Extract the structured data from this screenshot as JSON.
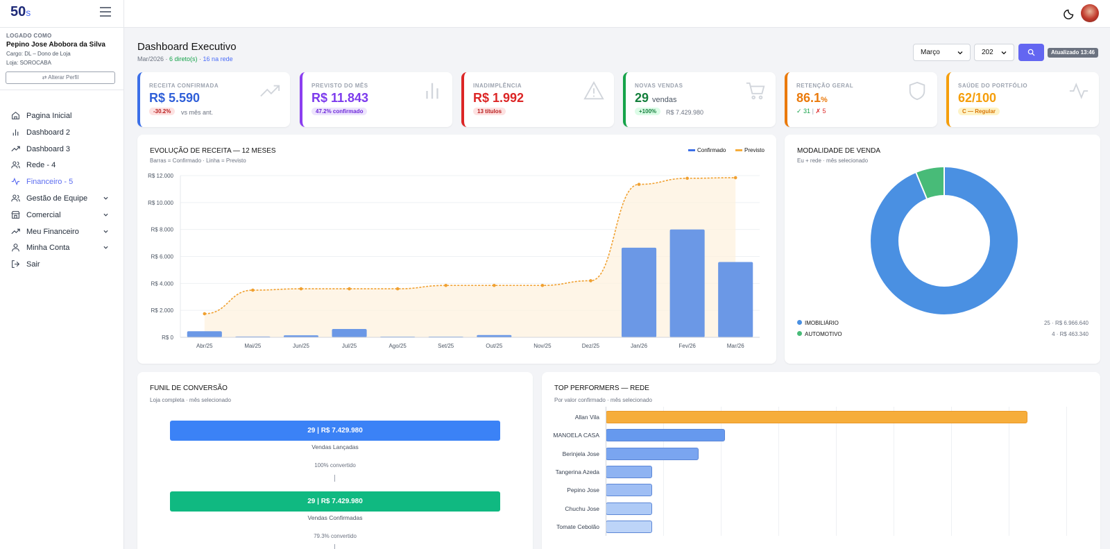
{
  "header": {
    "logo": "50",
    "logo_suffix": "s"
  },
  "profile": {
    "logged_label": "LOGADO COMO",
    "name": "Pepino Jose Abobora da Silva",
    "role": "Cargo: DL – Dono de Loja",
    "store": "Loja: SOROCABA",
    "alter_label": "⇄ Alterar Perfil"
  },
  "sidebar": {
    "items": [
      {
        "label": "Pagina Inicial",
        "icon": "home-icon"
      },
      {
        "label": "Dashboard 2",
        "icon": "bar-chart-icon"
      },
      {
        "label": "Dashboard 3",
        "icon": "trending-up-icon"
      },
      {
        "label": "Rede - 4",
        "icon": "users-icon"
      },
      {
        "label": "Financeiro - 5",
        "icon": "activity-icon"
      },
      {
        "label": "Gestão de Equipe",
        "icon": "users-icon"
      },
      {
        "label": "Comercial",
        "icon": "store-icon"
      },
      {
        "label": "Meu Financeiro",
        "icon": "trending-up-icon"
      },
      {
        "label": "Minha Conta",
        "icon": "user-icon"
      },
      {
        "label": "Sair",
        "icon": "logout-icon"
      }
    ]
  },
  "page": {
    "title": "Dashboard Executivo",
    "period": "Mar/2026",
    "sep1": " · ",
    "direct": "6 direto(s)",
    "sep2": " · ",
    "network": "16 na rede"
  },
  "filters": {
    "month": "Março",
    "year": "202",
    "updated": "Atualizado 13:46"
  },
  "kpis": [
    {
      "title": "RECEITA CONFIRMADA",
      "value": "R$ 5.590",
      "badge": "-30.2%",
      "note": "vs mês ant.",
      "color": "#3b6fe8"
    },
    {
      "title": "PREVISTO DO MÊS",
      "value": "R$ 11.843",
      "badge": "47.2% confirmado",
      "color": "#8b3ef0"
    },
    {
      "title": "INADIMPLÊNCIA",
      "value": "R$ 1.992",
      "badge": "13 títulos",
      "color": "#dc2626"
    },
    {
      "title": "NOVAS VENDAS",
      "value": "29",
      "value_suffix": "vendas",
      "badge": "+100%",
      "note": "R$ 7.429.980",
      "color": "#16a34a"
    },
    {
      "title": "RETENÇÃO GERAL",
      "value": "86.1",
      "value_suffix": "%",
      "ok": "✓ 31",
      "sep": "|",
      "bad": "✗ 5",
      "color": "#ea7a0c"
    },
    {
      "title": "SAÚDE DO PORTFÓLIO",
      "value": "62/100",
      "badge": "C — Regular",
      "color": "#f59e0b"
    }
  ],
  "revenue_chart": {
    "title": "EVOLUÇÃO DE RECEITA — 12 MESES",
    "subtitle": "Barras = Confirmado · Linha = Previsto"
  },
  "modality": {
    "title": "MODALIDADE DE VENDA",
    "subtitle": "Eu + rede · mês selecionado"
  },
  "funnel": {
    "title": "FUNIL DE CONVERSÃO",
    "subtitle": "Loja completa · mês selecionado",
    "stages": [
      {
        "value": "29 | R$ 7.429.980",
        "label": "Vendas Lançadas",
        "conv": "100% convertido"
      },
      {
        "value": "29 | R$ 7.429.980",
        "label": "Vendas Confirmadas",
        "conv": "79.3% convertido"
      }
    ]
  },
  "performers": {
    "title": "TOP PERFORMERS — REDE",
    "subtitle": "Por valor confirmado · mês selecionado"
  },
  "chart_data": [
    {
      "type": "bar",
      "title": "EVOLUÇÃO DE RECEITA — 12 MESES",
      "categories": [
        "Abr/25",
        "Mai/25",
        "Jun/25",
        "Jul/25",
        "Ago/25",
        "Set/25",
        "Out/25",
        "Nov/25",
        "Dez/25",
        "Jan/26",
        "Fev/26",
        "Mar/26"
      ],
      "series": [
        {
          "name": "Confirmado",
          "type": "bar",
          "values": [
            450,
            60,
            150,
            620,
            50,
            50,
            170,
            0,
            0,
            6650,
            8000,
            5590
          ]
        },
        {
          "name": "Previsto",
          "type": "line",
          "values": [
            1750,
            3500,
            3600,
            3600,
            3600,
            3850,
            3850,
            3850,
            4200,
            11350,
            11800,
            11843
          ]
        }
      ],
      "y_ticks": [
        "R$ 0",
        "R$ 2.000",
        "R$ 4.000",
        "R$ 6.000",
        "R$ 8.000",
        "R$ 10.000",
        "R$ 12.000"
      ],
      "ylim": [
        0,
        12000
      ],
      "legend": "top-right",
      "grid": true
    },
    {
      "type": "pie",
      "title": "MODALIDADE DE VENDA",
      "slices": [
        {
          "name": "IMOBILIÁRIO",
          "value": 6966.64,
          "label": "25 · R$ 6.966.640",
          "color": "#4a90e2"
        },
        {
          "name": "AUTOMOTIVO",
          "value": 463.34,
          "label": "4 · R$ 463.340",
          "color": "#48bb78"
        }
      ]
    },
    {
      "type": "bar",
      "orientation": "horizontal",
      "title": "TOP PERFORMERS — REDE",
      "categories": [
        "Allan Vila",
        "MANOELA CASA",
        "Berinjela Jose",
        "Tangerina Azeda",
        "Pepino Jose",
        "Chuchu Jose",
        "Tomate Cebolão"
      ],
      "values": [
        100,
        28.3,
        22,
        11,
        11,
        11,
        11
      ],
      "colors": [
        "#f6ad3b",
        "#6699ee",
        "#7aa5f0",
        "#8eb3f2",
        "#9fbef4",
        "#aecaf6",
        "#bdd4f8"
      ]
    }
  ]
}
